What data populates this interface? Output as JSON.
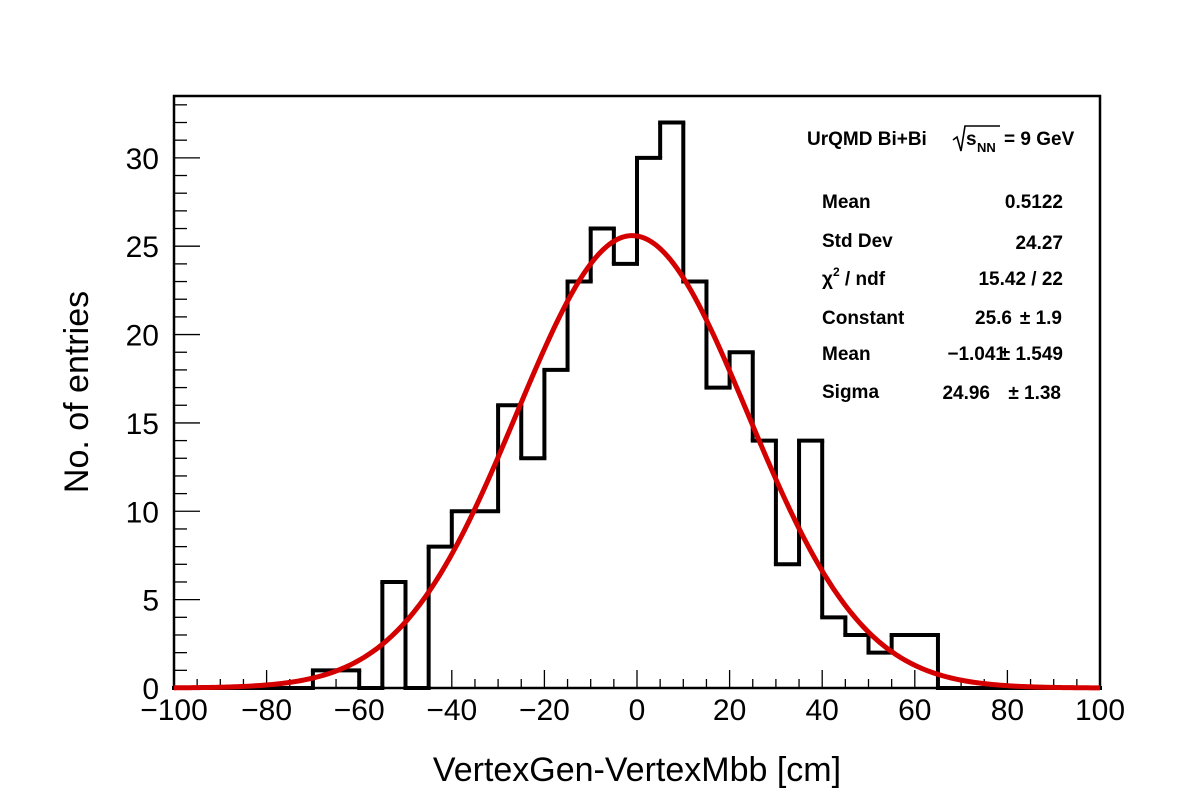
{
  "chart_data": {
    "type": "bar",
    "style": "step-histogram",
    "xlabel": "VertexGen-VertexMbb [cm]",
    "ylabel": "No. of entries",
    "xlim": [
      -100,
      100
    ],
    "ylim": [
      0,
      33.5
    ],
    "bin_width": 5,
    "bin_low_edges": [
      -100,
      -95,
      -90,
      -85,
      -80,
      -75,
      -70,
      -65,
      -60,
      -55,
      -50,
      -45,
      -40,
      -35,
      -30,
      -25,
      -20,
      -15,
      -10,
      -5,
      0,
      5,
      10,
      15,
      20,
      25,
      30,
      35,
      40,
      45,
      50,
      55,
      60,
      65,
      70,
      75,
      80,
      85,
      90,
      95
    ],
    "values": [
      0,
      0,
      0,
      0,
      0,
      0,
      1,
      1,
      0,
      6,
      0,
      8,
      10,
      10,
      16,
      13,
      18,
      23,
      26,
      24,
      30,
      32,
      23,
      17,
      19,
      14,
      7,
      14,
      4,
      3,
      2,
      3,
      3,
      0,
      0,
      0,
      0,
      0,
      0,
      0
    ],
    "x_ticks": [
      -100,
      -80,
      -60,
      -40,
      -20,
      0,
      20,
      40,
      60,
      80,
      100
    ],
    "x_tick_labels": [
      "−100",
      "−80",
      "−60",
      "−40",
      "−20",
      "0",
      "20",
      "40",
      "60",
      "80",
      "100"
    ],
    "y_ticks": [
      0,
      5,
      10,
      15,
      20,
      25,
      30
    ],
    "y_tick_labels": [
      "0",
      "5",
      "10",
      "15",
      "20",
      "25",
      "30"
    ],
    "fit": {
      "function": "gaus",
      "constant": 25.6,
      "mean": -1.041,
      "sigma": 24.96,
      "color": "#d40000"
    },
    "histogram_color": "#000000",
    "legend_placement": "top-right"
  },
  "header": {
    "prefix": "UrQMD Bi+Bi",
    "sqrt_s": "s",
    "subscript": "NN",
    "suffix": "= 9 GeV"
  },
  "stats": {
    "rows": [
      {
        "label": "Mean",
        "value": "0.5122",
        "error": ""
      },
      {
        "label": "Std Dev",
        "value": "24.27",
        "error": ""
      },
      {
        "label": "χ",
        "label_sup": "2",
        "label_rest": " / ndf",
        "value": "15.42 / 22",
        "error": ""
      },
      {
        "label": "Constant",
        "value": "25.6",
        "error": "± 1.9"
      },
      {
        "label": "Mean",
        "value": "−1.041",
        "error": "± 1.549"
      },
      {
        "label": "Sigma",
        "value": "24.96",
        "error": "± 1.38"
      }
    ]
  }
}
